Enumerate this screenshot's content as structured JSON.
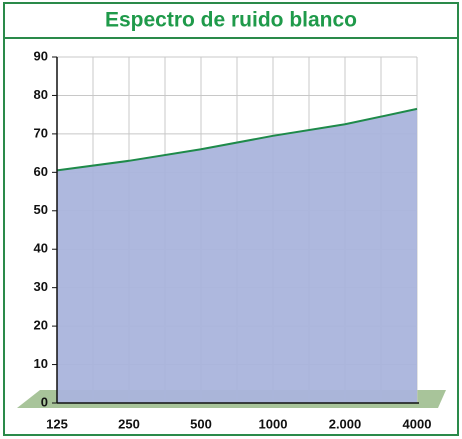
{
  "chart_data": {
    "type": "area",
    "title": "Espectro de ruido blanco",
    "categories": [
      "125",
      "250",
      "500",
      "1000",
      "2.000",
      "4000"
    ],
    "values": [
      60.5,
      63,
      66,
      69.5,
      72.5,
      76.5
    ],
    "color": "#aab4dc",
    "line_color": "#1e8a4a",
    "ylim": [
      0,
      90
    ],
    "yticks": [
      0,
      10,
      20,
      30,
      40,
      50,
      60,
      70,
      80,
      90
    ],
    "grid": true
  }
}
